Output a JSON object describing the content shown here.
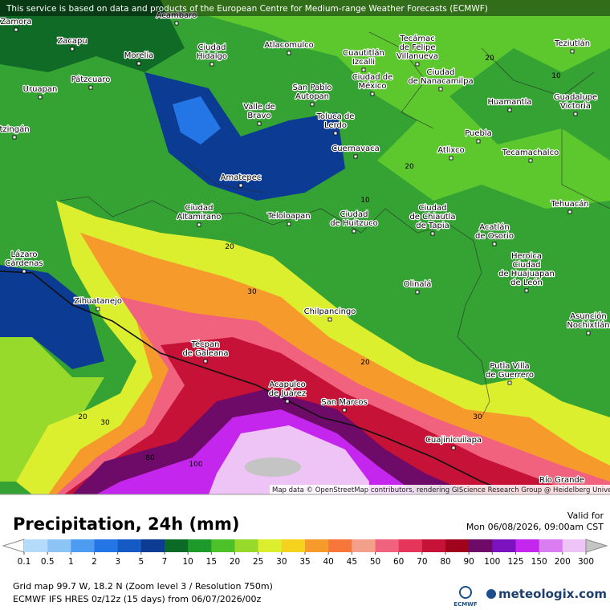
{
  "header": {
    "notice": "This service is based on data and products of the European Centre for Medium-range Weather Forecasts (ECMWF)"
  },
  "map": {
    "places": [
      {
        "lines": [
          "Zamora"
        ]
      },
      {
        "lines": [
          "Acambaro"
        ]
      },
      {
        "lines": [
          "Zacapu"
        ]
      },
      {
        "lines": [
          "Morelia"
        ]
      },
      {
        "lines": [
          "Ciudad",
          "Hidalgo"
        ]
      },
      {
        "lines": [
          "Atlacomulco"
        ]
      },
      {
        "lines": [
          "Cuautitlán",
          "Izcalli"
        ]
      },
      {
        "lines": [
          "Tecámac",
          "de Felipe",
          "Villanueva"
        ]
      },
      {
        "lines": [
          "Teziutlán"
        ]
      },
      {
        "lines": [
          "Uruapan"
        ]
      },
      {
        "lines": [
          "Pátzcuaro"
        ]
      },
      {
        "lines": [
          "San Pablo",
          "Autopan"
        ]
      },
      {
        "lines": [
          "Ciudad de",
          "México"
        ]
      },
      {
        "lines": [
          "Ciudad",
          "de Nanacamilpa"
        ]
      },
      {
        "lines": [
          "Guadalupe",
          "Victoria"
        ]
      },
      {
        "lines": [
          "Huamantla"
        ]
      },
      {
        "lines": [
          "Valle de",
          "Bravo"
        ]
      },
      {
        "lines": [
          "Toluca de",
          "Lerdo"
        ]
      },
      {
        "lines": [
          "tzingán"
        ]
      },
      {
        "lines": [
          "Puebla"
        ]
      },
      {
        "lines": [
          "Cuernavaca"
        ]
      },
      {
        "lines": [
          "Atlixco"
        ]
      },
      {
        "lines": [
          "Tecamachalco"
        ]
      },
      {
        "lines": [
          "Amatepec"
        ]
      },
      {
        "lines": [
          "Tehuacán"
        ]
      },
      {
        "lines": [
          "Ciudad",
          "Altamirano"
        ]
      },
      {
        "lines": [
          "Teloloapan"
        ]
      },
      {
        "lines": [
          "Ciudad",
          "de Huitzuco"
        ]
      },
      {
        "lines": [
          "Ciudad",
          "de Chiautla",
          "de Tapia"
        ]
      },
      {
        "lines": [
          "Acatlán",
          "de Osorio"
        ]
      },
      {
        "lines": [
          "Lázaro",
          "Cárdenas"
        ]
      },
      {
        "lines": [
          "Heroica",
          "Ciudad",
          "de Huajuapan",
          "de León"
        ]
      },
      {
        "lines": [
          "Olinalá"
        ]
      },
      {
        "lines": [
          "Zihuatanejo"
        ]
      },
      {
        "lines": [
          "Chilpancingo"
        ]
      },
      {
        "lines": [
          "Asunción",
          "Nochixtlán"
        ]
      },
      {
        "lines": [
          "Técpan",
          "de Galeana"
        ]
      },
      {
        "lines": [
          "Putla Villa",
          "de Guerrero"
        ]
      },
      {
        "lines": [
          "Acapulco",
          "de Juárez"
        ]
      },
      {
        "lines": [
          "San Marcos"
        ]
      },
      {
        "lines": [
          "Cuajinicuilapa"
        ]
      },
      {
        "lines": [
          "Río Grande"
        ]
      }
    ],
    "contour_labels": [
      20,
      10,
      20,
      10,
      20,
      30,
      20,
      20,
      30,
      30,
      80,
      100
    ],
    "attribution": "Map data © OpenStreetMap contributors, rendering GIScience Research Group @ Heidelberg University"
  },
  "legend": {
    "title": "Precipitation, 24h (mm)",
    "valid_label": "Valid for",
    "valid_time": "Mon 06/08/2026, 09:00am CST",
    "ticks": [
      0.1,
      0.5,
      1,
      2,
      3,
      5,
      7,
      10,
      15,
      20,
      25,
      30,
      35,
      40,
      45,
      50,
      60,
      70,
      80,
      90,
      100,
      125,
      150,
      200,
      300
    ],
    "colors": [
      "#b4dcfa",
      "#8cc4f6",
      "#4d9cf2",
      "#2476e6",
      "#1559c4",
      "#0c3b94",
      "#0b6a26",
      "#1e9a2a",
      "#4cc12a",
      "#97da2c",
      "#dcef2e",
      "#f4d21e",
      "#f69a2c",
      "#f7773a",
      "#f3a08a",
      "#f0627e",
      "#e5365a",
      "#c61236",
      "#a0041c",
      "#6e0a68",
      "#7b12c0",
      "#c526ee",
      "#da7cf2",
      "#eec3f5"
    ],
    "low_color": "#ffffff",
    "high_color": "#c4c4c4"
  },
  "footer": {
    "grid": "Grid map 99.7 W, 18.2 N (Zoom level 3 / Resolution 750m)",
    "model": "ECMWF IFS HRES 0z/12z (15 days) from 06/07/2026/00z",
    "ecmwf": "ECMWF",
    "brand": "meteologix.com"
  }
}
